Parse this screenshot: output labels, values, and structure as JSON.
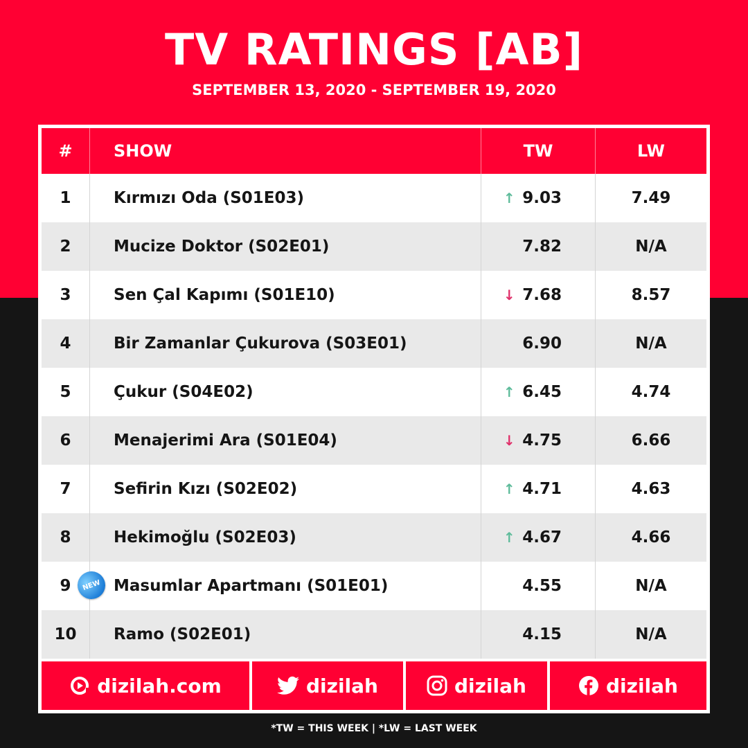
{
  "title": "TV RATINGS [AB]",
  "subtitle": "SEPTEMBER 13, 2020 - SEPTEMBER 19, 2020",
  "headers": {
    "num": "#",
    "show": "SHOW",
    "tw": "TW",
    "lw": "LW"
  },
  "rows": [
    {
      "rank": "1",
      "show": "Kırmızı Oda (S01E03)",
      "tw": "9.03",
      "lw": "7.49",
      "trend": "up",
      "badge": ""
    },
    {
      "rank": "2",
      "show": "Mucize Doktor (S02E01)",
      "tw": "7.82",
      "lw": "N/A",
      "trend": "",
      "badge": ""
    },
    {
      "rank": "3",
      "show": "Sen Çal Kapımı (S01E10)",
      "tw": "7.68",
      "lw": "8.57",
      "trend": "down",
      "badge": ""
    },
    {
      "rank": "4",
      "show": "Bir Zamanlar Çukurova (S03E01)",
      "tw": "6.90",
      "lw": "N/A",
      "trend": "",
      "badge": ""
    },
    {
      "rank": "5",
      "show": "Çukur (S04E02)",
      "tw": "6.45",
      "lw": "4.74",
      "trend": "up",
      "badge": ""
    },
    {
      "rank": "6",
      "show": "Menajerimi Ara (S01E04)",
      "tw": "4.75",
      "lw": "6.66",
      "trend": "down",
      "badge": ""
    },
    {
      "rank": "7",
      "show": "Sefirin Kızı (S02E02)",
      "tw": "4.71",
      "lw": "4.63",
      "trend": "up",
      "badge": ""
    },
    {
      "rank": "8",
      "show": "Hekimoğlu (S02E03)",
      "tw": "4.67",
      "lw": "4.66",
      "trend": "up",
      "badge": ""
    },
    {
      "rank": "9",
      "show": "Masumlar Apartmanı (S01E01)",
      "tw": "4.55",
      "lw": "N/A",
      "trend": "",
      "badge": "NEW"
    },
    {
      "rank": "10",
      "show": "Ramo (S02E01)",
      "tw": "4.15",
      "lw": "N/A",
      "trend": "",
      "badge": ""
    }
  ],
  "footer": {
    "website": "dizilah.com",
    "twitter": "dizilah",
    "instagram": "dizilah",
    "facebook": "dizilah"
  },
  "icons": {
    "website": "dizilah-logo-icon",
    "twitter": "twitter-icon",
    "instagram": "instagram-icon",
    "facebook": "facebook-icon",
    "up": "arrow-up-icon",
    "down": "arrow-down-icon"
  },
  "note": "*TW = THIS WEEK | *LW = LAST WEEK",
  "colors": {
    "brand": "#ff0033",
    "dark": "#151515",
    "up": "#5dbb9a",
    "down": "#e0306a",
    "row_alt": "#e9e9e9"
  }
}
